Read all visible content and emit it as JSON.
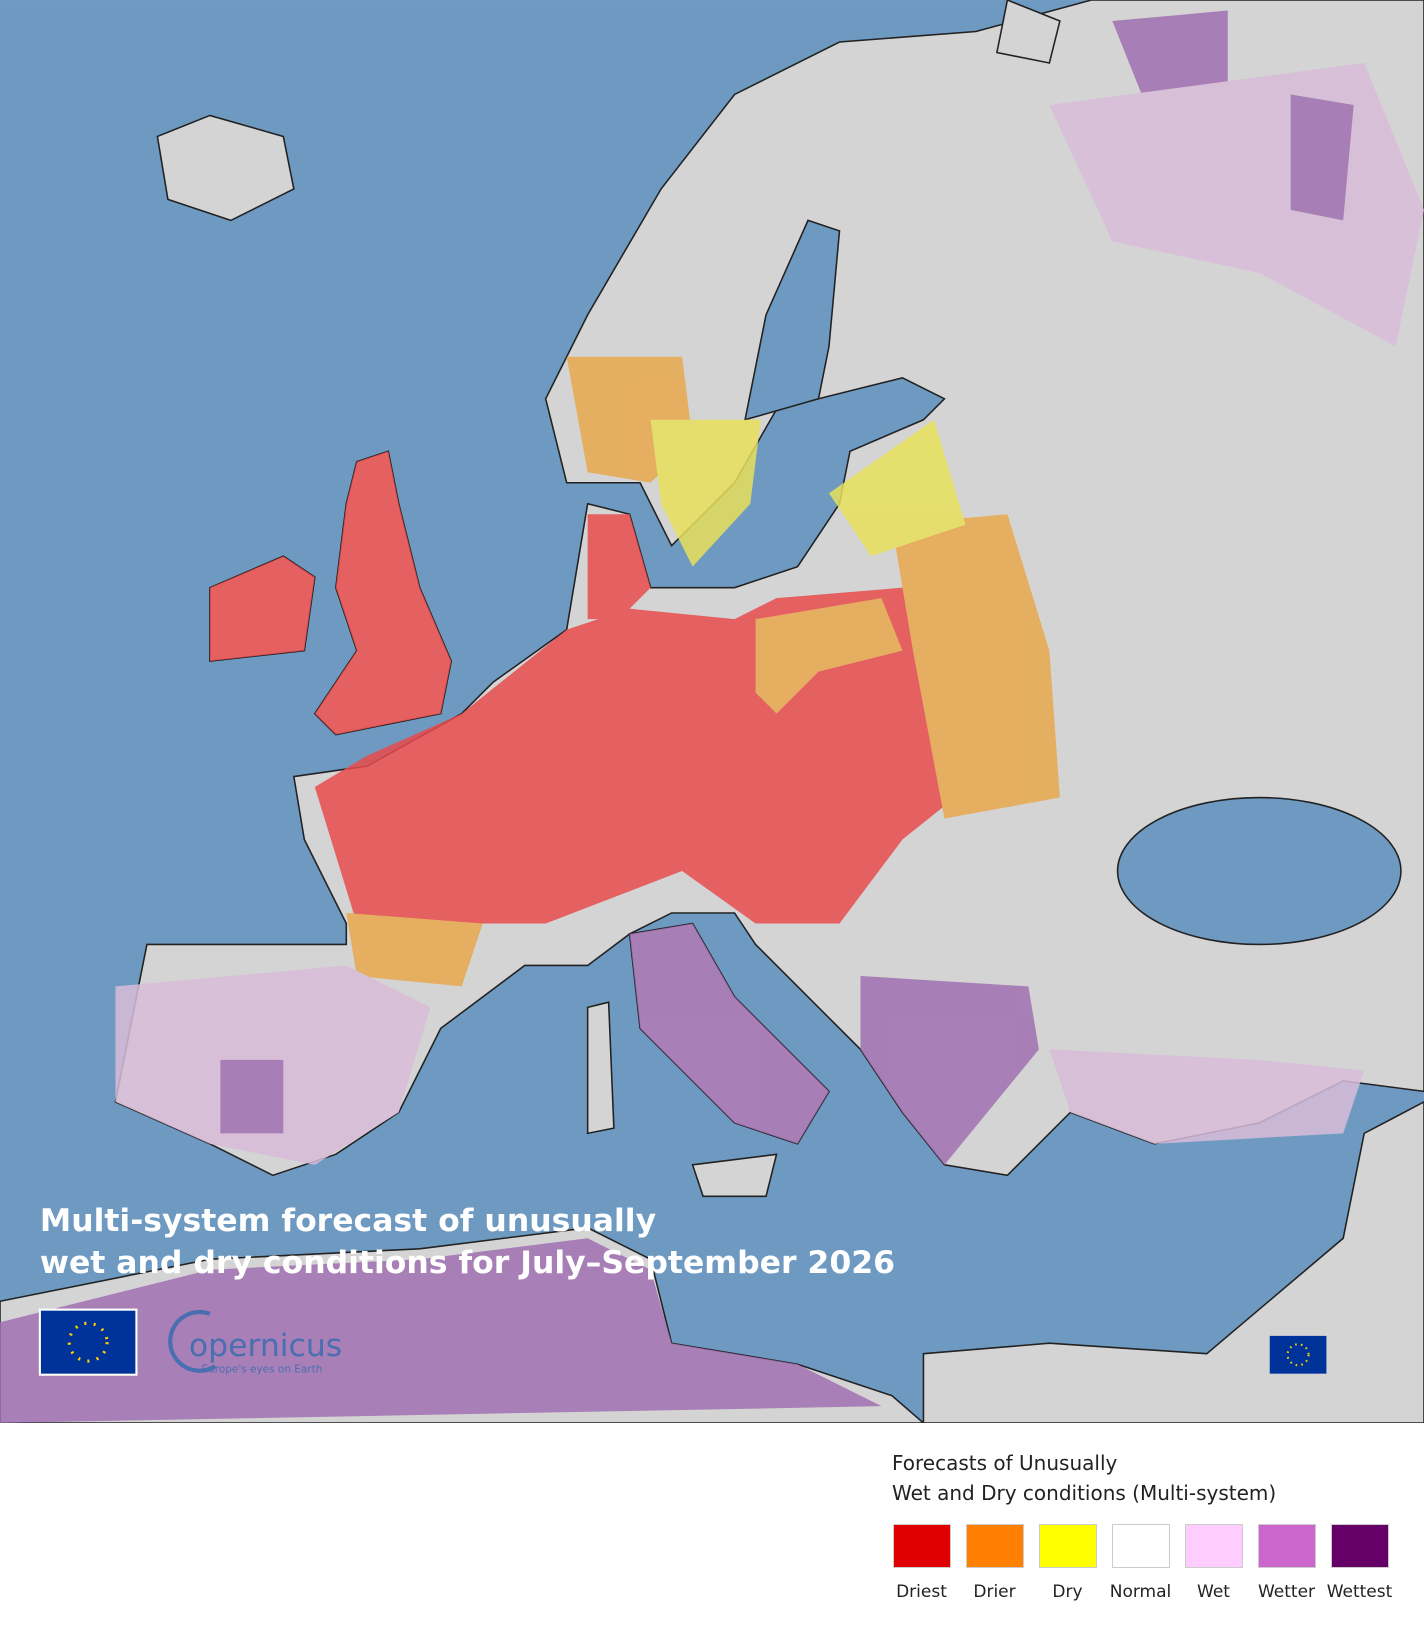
{
  "map": {
    "title_lines": [
      "Multi-system forecast of unusually",
      "wet and dry conditions for July–September 2026"
    ],
    "logo": {
      "name": "opernicus",
      "tagline": "Europe's eyes on Earth"
    },
    "legend": {
      "title_lines": [
        "Forecasts of Unusually",
        "Wet and Dry conditions (Multi-system)"
      ],
      "items": [
        {
          "label": "Driest",
          "color": "#e00000"
        },
        {
          "label": "Drier",
          "color": "#ff8000"
        },
        {
          "label": "Dry",
          "color": "#ffff00"
        },
        {
          "label": "Normal",
          "color": "#ffffff"
        },
        {
          "label": "Wet",
          "color": "#ffccff"
        },
        {
          "label": "Wetter",
          "color": "#cc66cc"
        },
        {
          "label": "Wettest",
          "color": "#660066"
        }
      ]
    }
  }
}
